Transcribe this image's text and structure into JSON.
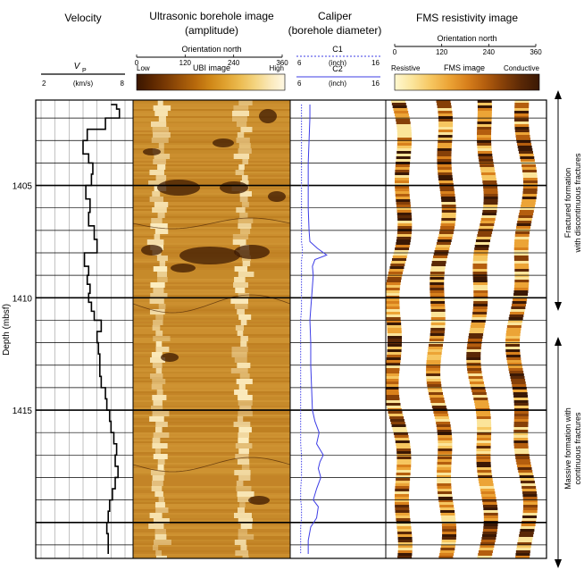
{
  "chart_data": {
    "type": "well-log",
    "depth_axis": {
      "label": "Depth (mbsf)",
      "range": [
        1401.2,
        1421.6
      ],
      "ticks": [
        1405,
        1410,
        1415
      ]
    },
    "tracks": [
      {
        "id": "velocity",
        "title": "Velocity",
        "curve_label_main": "V",
        "curve_label_sub": "P",
        "unit": "(km/s)",
        "scale": [
          2,
          8
        ],
        "scale_labels": [
          "2",
          "8"
        ],
        "series": {
          "depth": [
            1401.4,
            1401.6,
            1402.0,
            1402.5,
            1403.0,
            1403.6,
            1404.0,
            1404.5,
            1405.0,
            1405.6,
            1406.2,
            1406.8,
            1407.4,
            1408.0,
            1408.6,
            1409.0,
            1409.4,
            1409.8,
            1410.2,
            1410.6,
            1411.0,
            1411.5,
            1412.0,
            1412.5,
            1413.0,
            1413.5,
            1414.0,
            1414.5,
            1415.0,
            1415.5,
            1416.0,
            1416.5,
            1417.0,
            1417.5,
            1418.0,
            1418.5,
            1419.0,
            1419.5,
            1420.0,
            1420.5,
            1421.0,
            1421.4
          ],
          "vp": [
            7.0,
            7.4,
            7.6,
            6.6,
            5.3,
            5.0,
            5.4,
            5.7,
            5.6,
            5.2,
            5.5,
            5.4,
            5.8,
            6.0,
            5.1,
            5.4,
            5.3,
            5.5,
            5.4,
            5.6,
            5.8,
            6.3,
            6.0,
            6.1,
            6.2,
            6.2,
            6.3,
            6.6,
            6.7,
            6.9,
            7.0,
            7.2,
            7.4,
            7.3,
            7.5,
            7.3,
            7.1,
            6.9,
            6.8,
            6.7,
            6.8,
            6.8
          ]
        }
      },
      {
        "id": "ubi",
        "title_line1": "Ultrasonic borehole image",
        "title_line2": "(amplitude)",
        "orientation_label": "Orientation north",
        "orientation_ticks": [
          "0",
          "120",
          "240",
          "360"
        ],
        "colorbar_label": "UBI image",
        "colorbar_low": "Low",
        "colorbar_high": "High",
        "colormap": [
          "#3a1600",
          "#5a2600",
          "#7a3a04",
          "#9a5208",
          "#b86a0c",
          "#d08818",
          "#e0a230",
          "#ecbc52",
          "#f4d480",
          "#fae8b8",
          "#fff8e4"
        ]
      },
      {
        "id": "caliper",
        "title_line1": "Caliper",
        "title_line2": "(borehole diameter)",
        "c1_label": "C1",
        "c1_unit": "(inch)",
        "c1_scale": [
          6,
          16
        ],
        "c1_scale_labels": [
          "6",
          "16"
        ],
        "c2_label": "C2",
        "c2_unit": "(inch)",
        "c2_scale": [
          6,
          16
        ],
        "c2_scale_labels": [
          "6",
          "16"
        ],
        "line_color": "#3c3ce6",
        "series": {
          "depth": [
            1401.4,
            1402.0,
            1403.0,
            1404.0,
            1405.0,
            1406.0,
            1407.0,
            1407.5,
            1407.8,
            1408.1,
            1408.3,
            1408.6,
            1409.0,
            1409.5,
            1410.0,
            1410.5,
            1411.0,
            1412.0,
            1413.0,
            1414.0,
            1415.0,
            1415.5,
            1416.0,
            1416.5,
            1417.0,
            1417.3,
            1417.6,
            1418.0,
            1418.5,
            1419.0,
            1419.3,
            1419.8,
            1420.2,
            1420.8,
            1421.4
          ],
          "c1": [
            6.6,
            6.6,
            6.6,
            6.6,
            6.6,
            6.6,
            6.6,
            6.6,
            6.7,
            6.7,
            6.6,
            6.6,
            6.6,
            6.6,
            6.6,
            6.6,
            6.5,
            6.5,
            6.5,
            6.5,
            6.5,
            6.5,
            6.5,
            6.5,
            6.6,
            6.6,
            6.6,
            6.6,
            6.5,
            6.5,
            6.6,
            6.6,
            6.5,
            6.5,
            6.5
          ],
          "c2": [
            7.6,
            7.6,
            7.5,
            7.4,
            7.4,
            7.4,
            7.5,
            7.6,
            8.5,
            9.6,
            8.2,
            7.9,
            8.0,
            7.9,
            7.8,
            7.7,
            7.6,
            7.7,
            7.7,
            7.8,
            7.9,
            8.2,
            8.7,
            8.4,
            9.2,
            8.8,
            8.6,
            8.9,
            8.4,
            8.0,
            8.6,
            8.4,
            7.7,
            7.4,
            7.4
          ]
        }
      },
      {
        "id": "fms",
        "title": "FMS resistivity image",
        "orientation_label": "Orientation north",
        "orientation_ticks": [
          "0",
          "120",
          "240",
          "360"
        ],
        "colorbar_label": "FMS image",
        "colorbar_low": "Resistive",
        "colorbar_high": "Conductive",
        "colormap": [
          "#fff8d0",
          "#fbe49a",
          "#f6c660",
          "#eca436",
          "#d8801c",
          "#b45e0e",
          "#864008",
          "#5a2806",
          "#3a1804"
        ]
      }
    ],
    "annotations": [
      {
        "text_line1": "Fractured formation",
        "text_line2": "with discontinuous fractures",
        "depth_range": [
          1401.4,
          1409.9
        ]
      },
      {
        "text_line1": "Massive formation with",
        "text_line2": "continuous fractures",
        "depth_range": [
          1410.4,
          1421.6
        ]
      }
    ]
  }
}
